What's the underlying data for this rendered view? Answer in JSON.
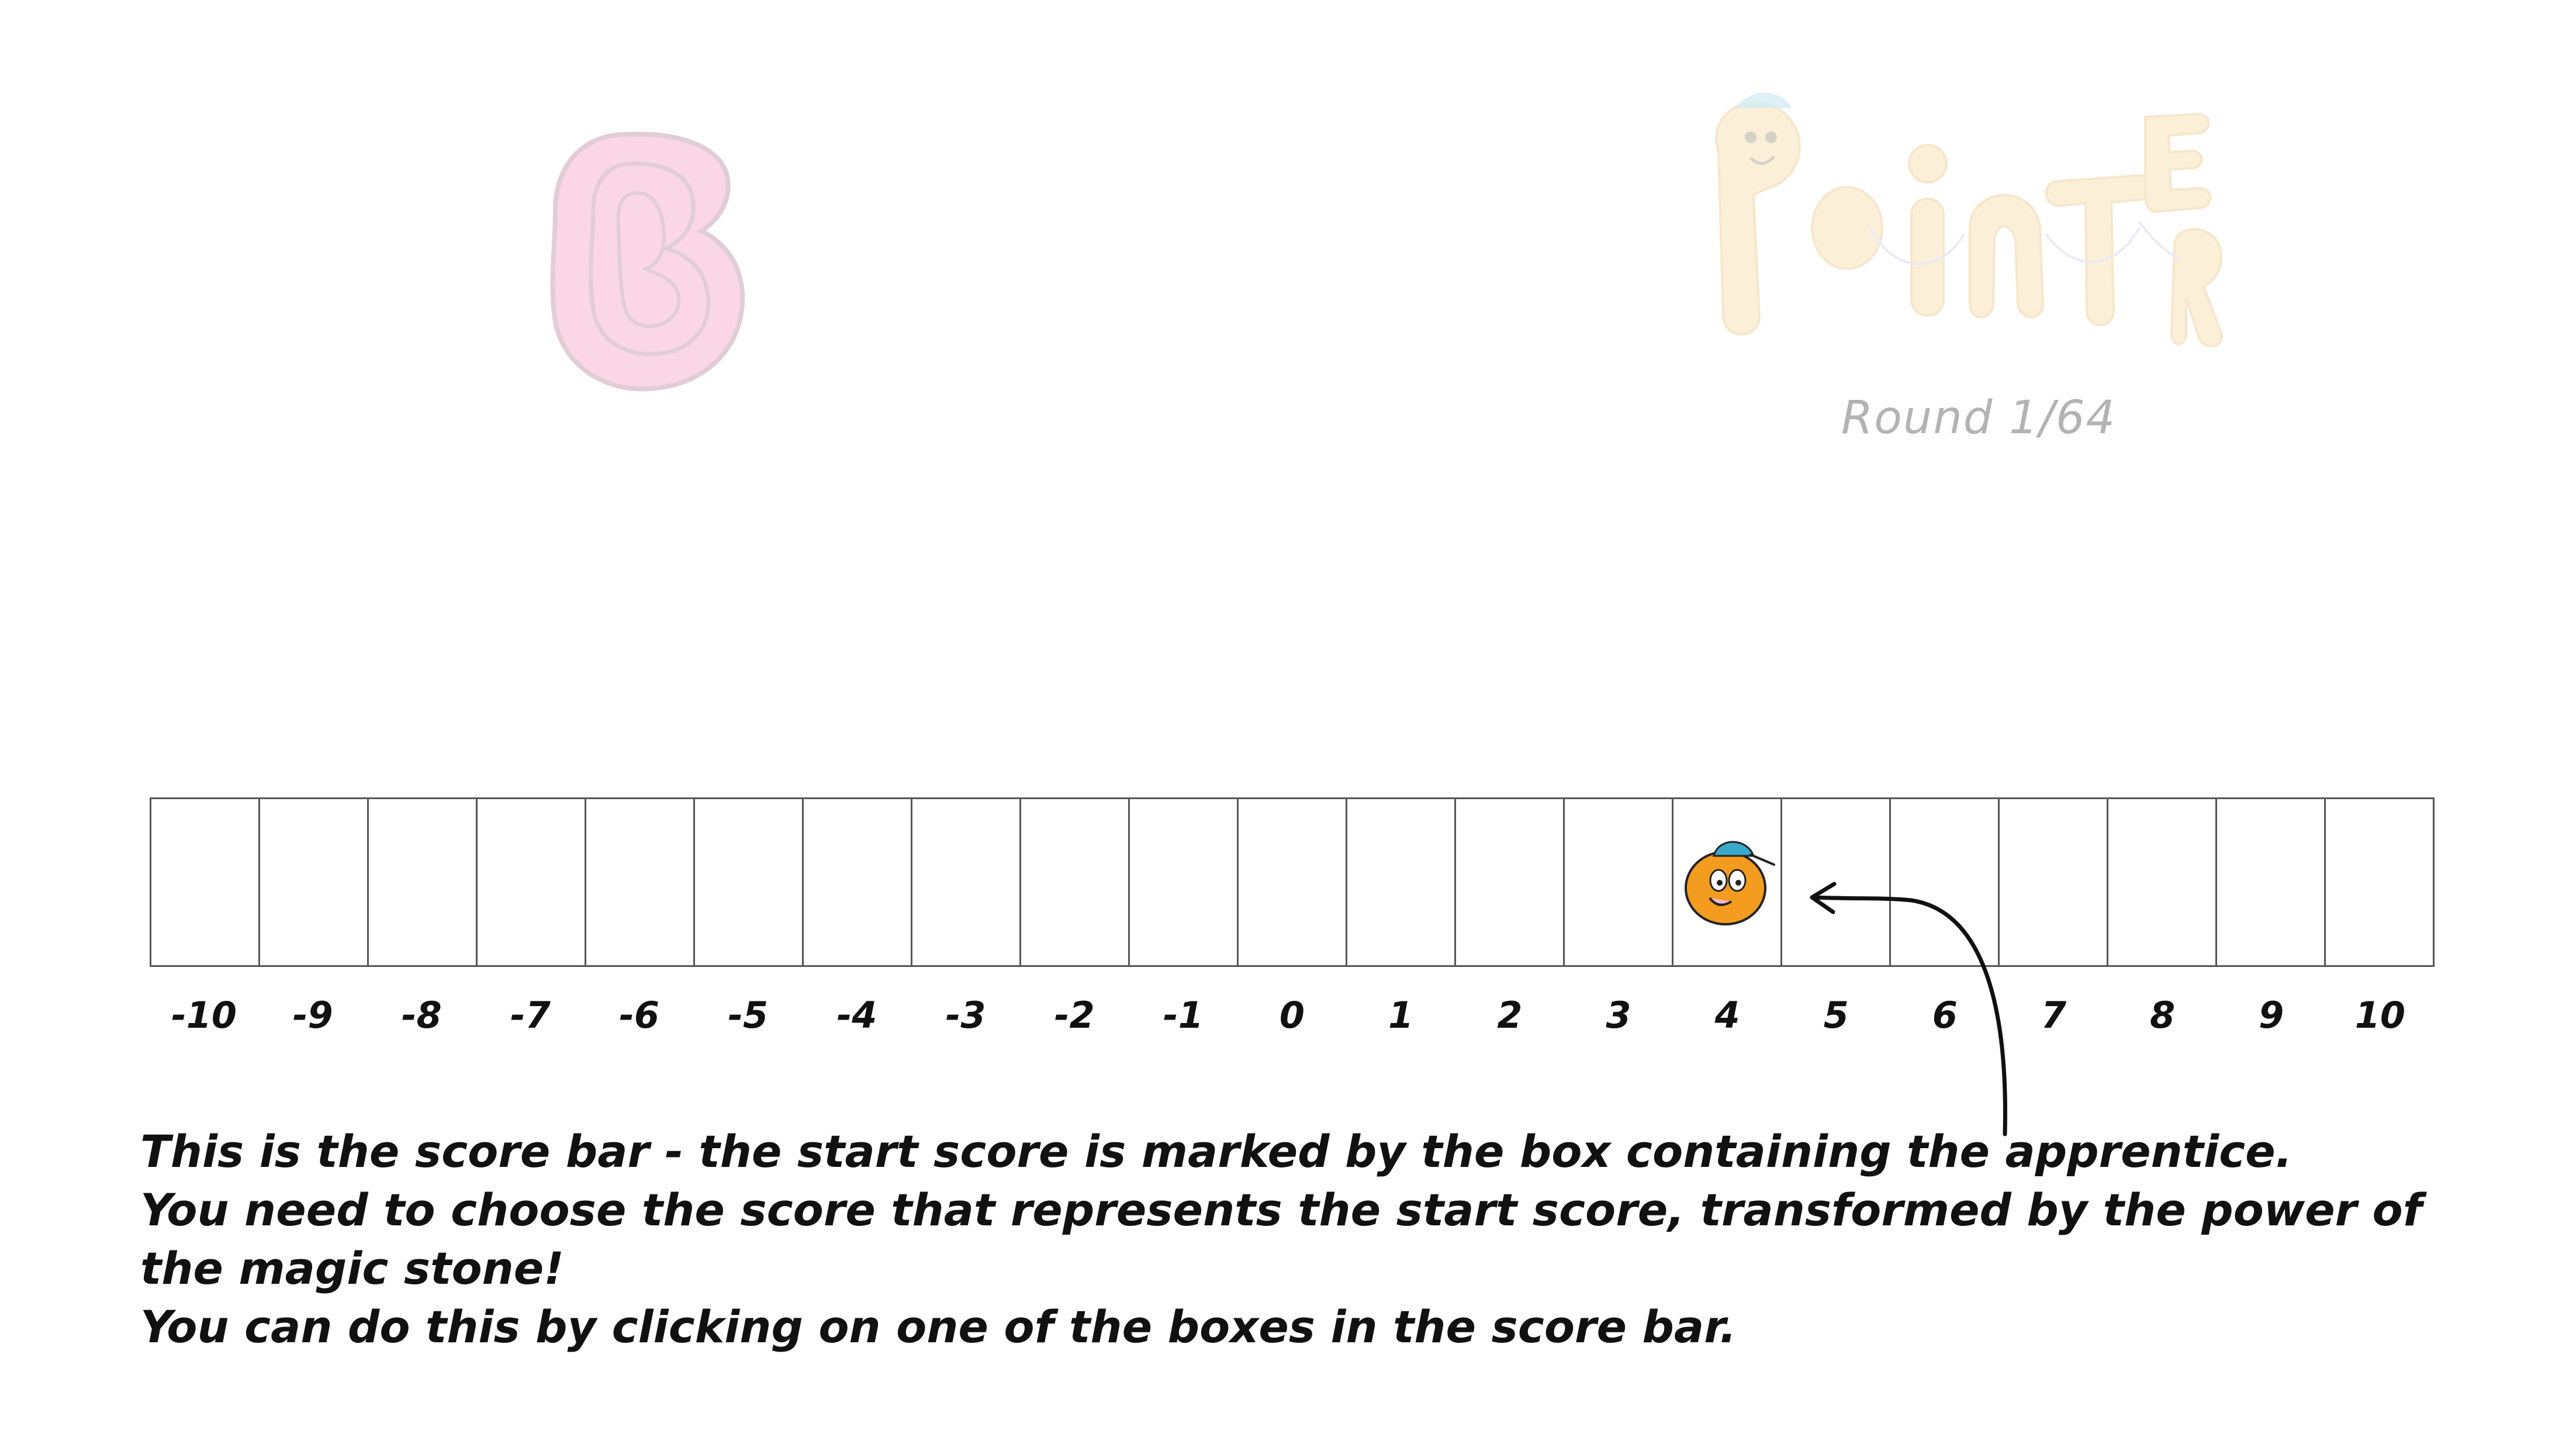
{
  "header": {
    "round_label": "Round 1/64"
  },
  "logos": {
    "stone_icon": "b-stone-icon",
    "title_art_text": "Pointer"
  },
  "score_bar": {
    "boxes": [
      -10,
      -9,
      -8,
      -7,
      -6,
      -5,
      -4,
      -3,
      -2,
      -1,
      0,
      1,
      2,
      3,
      4,
      5,
      6,
      7,
      8,
      9,
      10
    ],
    "labels": [
      "-10",
      "-9",
      "-8",
      "-7",
      "-6",
      "-5",
      "-4",
      "-3",
      "-2",
      "-1",
      "0",
      "1",
      "2",
      "3",
      "4",
      "5",
      "6",
      "7",
      "8",
      "9",
      "10"
    ],
    "start_score": 4,
    "apprentice_icon": "apprentice-icon"
  },
  "instructions": {
    "line1": "This is the score bar - the start score is marked by the box containing the apprentice.",
    "line2": "You need to choose the score that represents the start score, transformed by the power of the magic stone!",
    "line3": "You can do this by clicking on one of the boxes in the score bar."
  },
  "colors": {
    "stone_pink": "#f7b6d2",
    "title_yellow": "#f6d79a",
    "apprentice_orange": "#f39c1f",
    "cap_teal": "#39a9c9",
    "box_border": "#555555"
  }
}
